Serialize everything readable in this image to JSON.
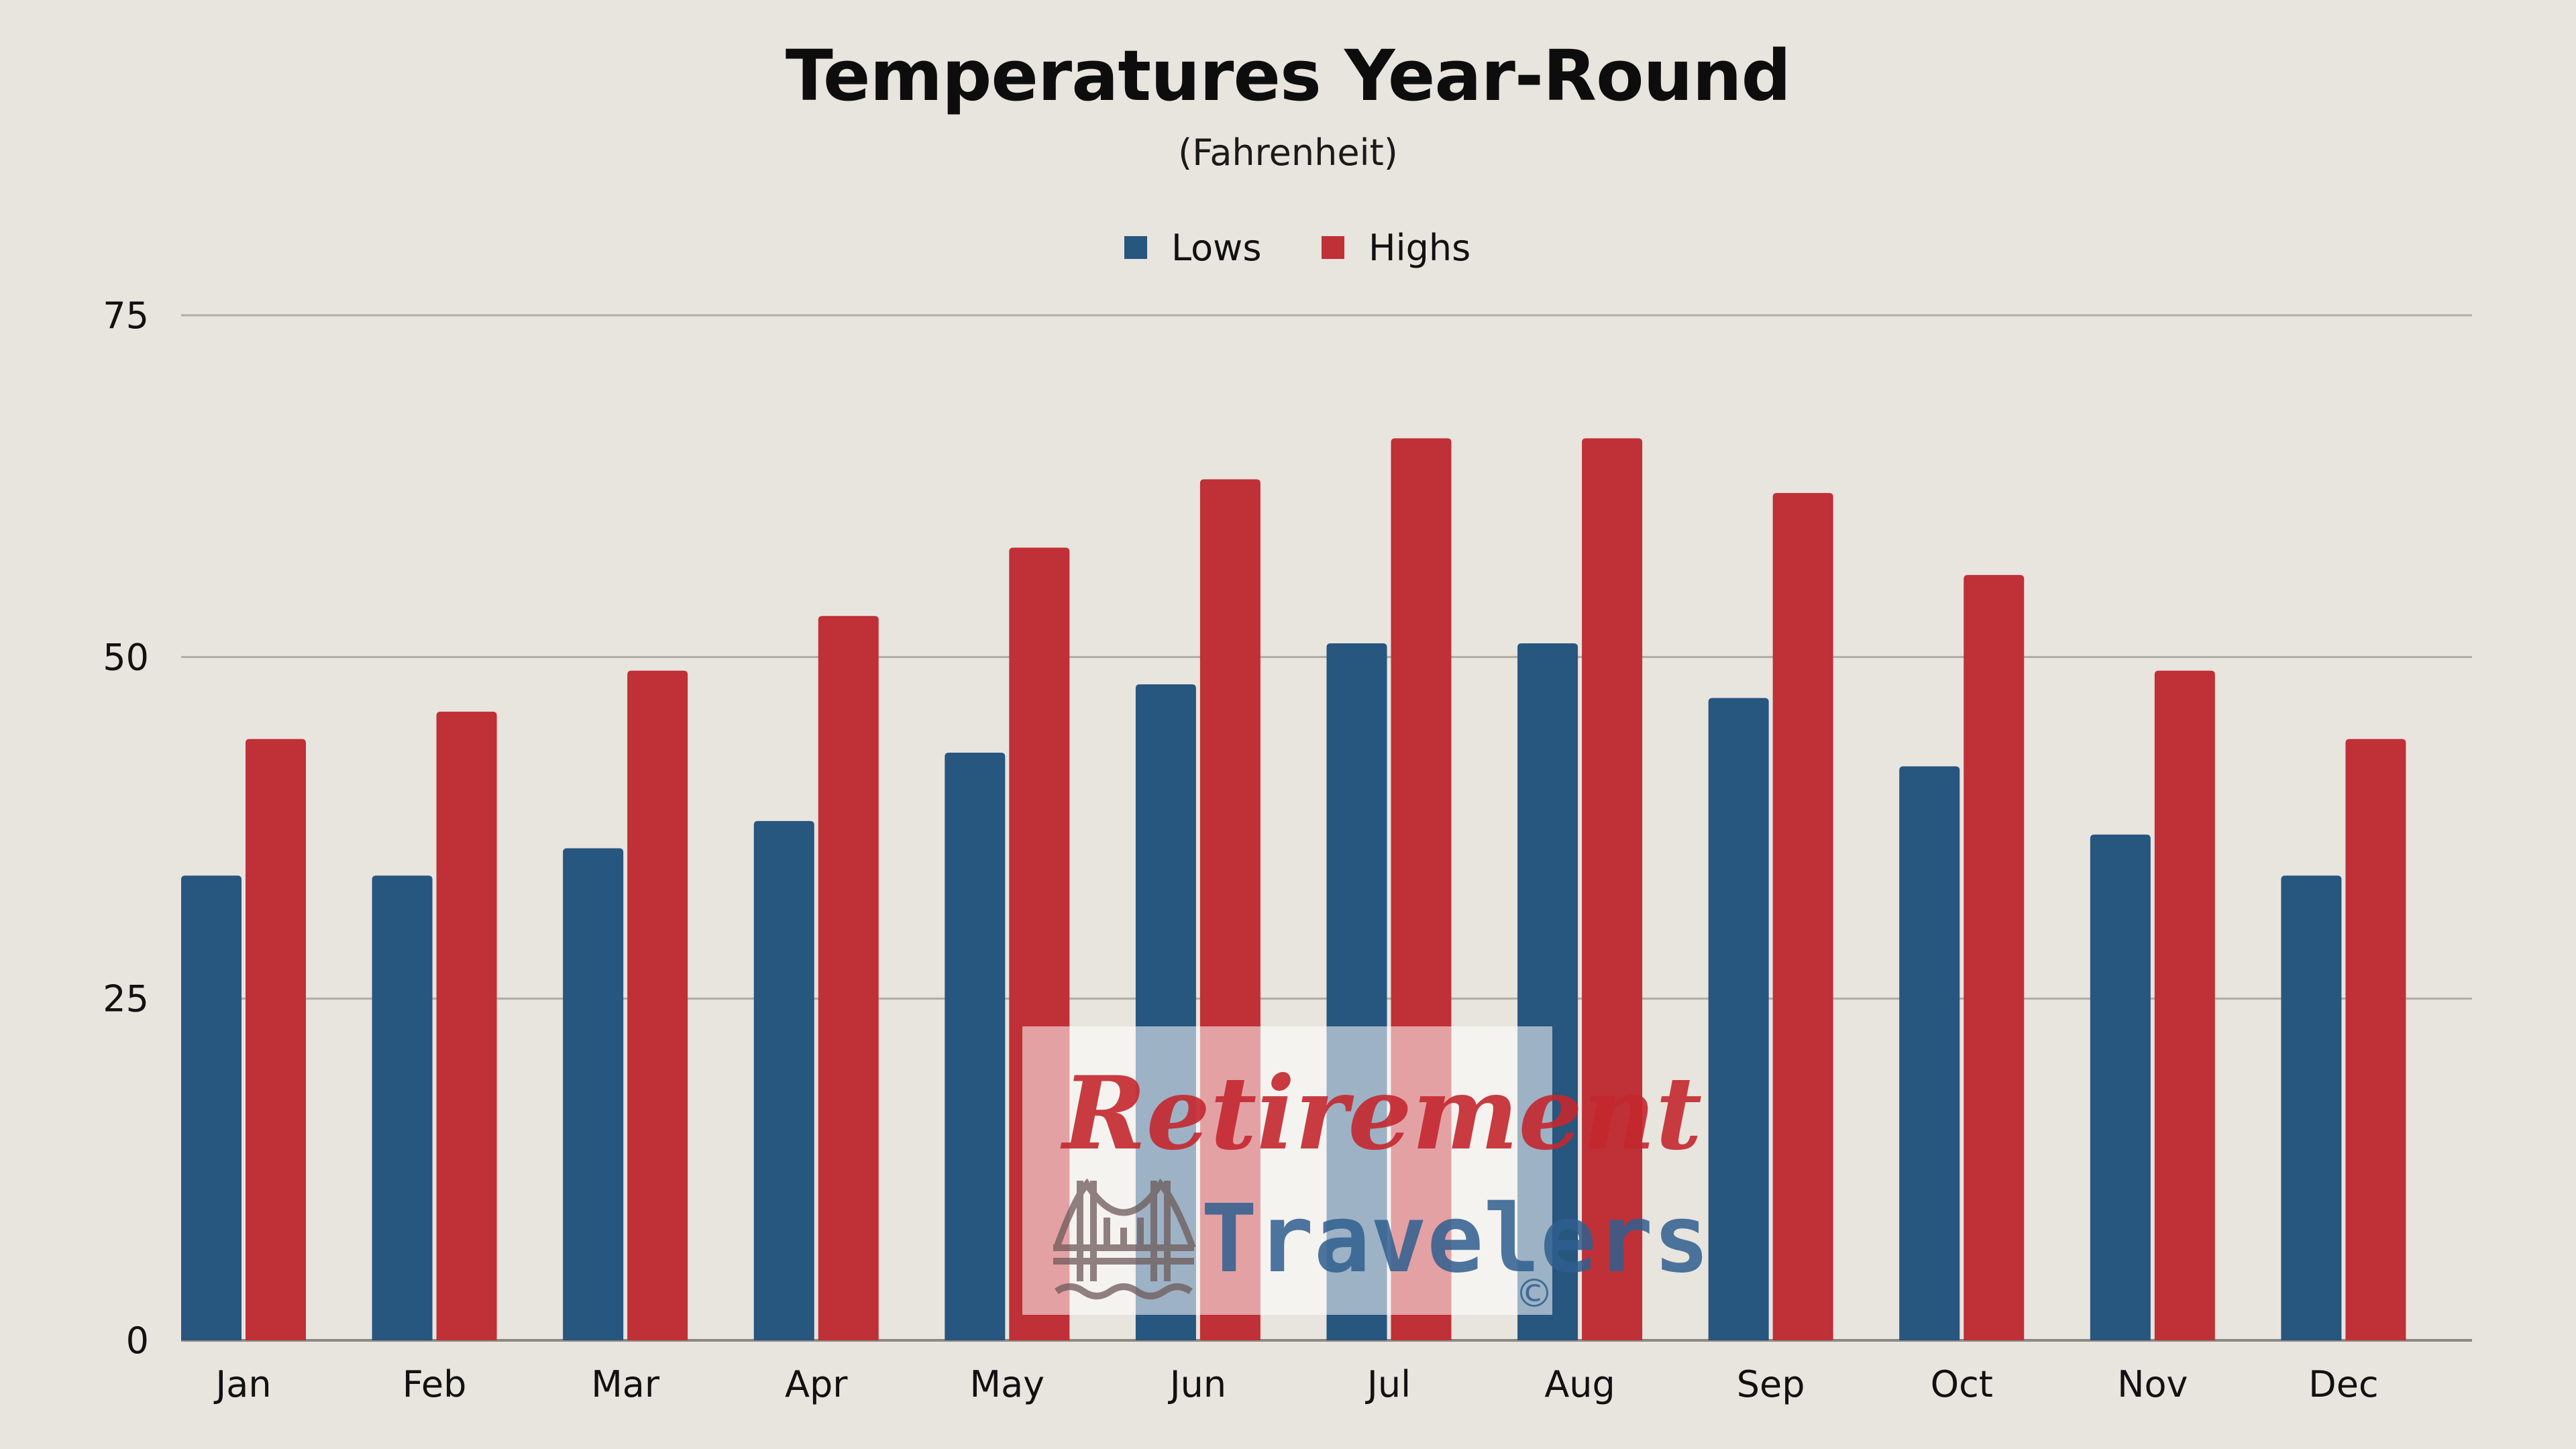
{
  "chart_data": {
    "type": "bar",
    "title": "Temperatures Year-Round",
    "subtitle": "(Fahrenheit)",
    "categories": [
      "Jan",
      "Feb",
      "Mar",
      "Apr",
      "May",
      "Jun",
      "Jul",
      "Aug",
      "Sep",
      "Oct",
      "Nov",
      "Dec"
    ],
    "series": [
      {
        "name": "Lows",
        "color": "#27567f",
        "values": [
          34,
          34,
          36,
          38,
          43,
          48,
          51,
          51,
          47,
          42,
          37,
          34
        ]
      },
      {
        "name": "Highs",
        "color": "#c03037",
        "values": [
          44,
          46,
          49,
          53,
          58,
          63,
          66,
          66,
          62,
          56,
          49,
          44
        ]
      }
    ],
    "ylim": [
      0,
      75
    ],
    "yticks": [
      0,
      25,
      50,
      75
    ],
    "grid": true,
    "legend_position": "top-center",
    "gridline_color": "#b0aca6",
    "axis_color": "#8c8884"
  },
  "watermark": {
    "line1": "Retirement",
    "line2": "Travelers",
    "copyright": "©",
    "line1_color": "#c4282f",
    "line2_color": "#2f5f8f",
    "icon": "bridge-icon"
  }
}
